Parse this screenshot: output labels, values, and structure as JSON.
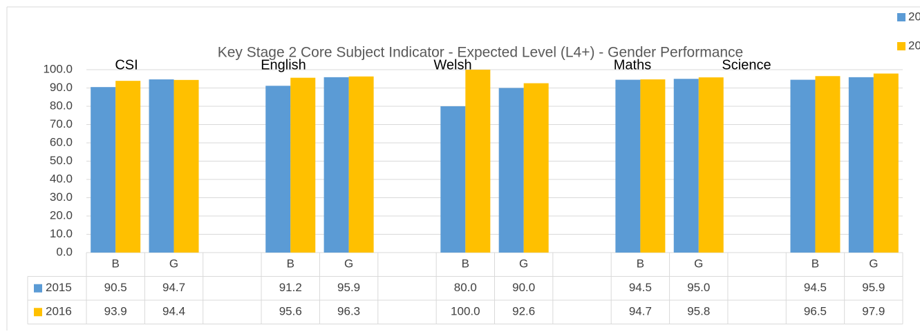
{
  "chart_data": {
    "type": "bar",
    "title": "Key Stage 2 Core Subject Indicator - Expected Level (L4+) - Gender Performance",
    "categories": [
      "B",
      "G",
      null,
      "B",
      "G",
      null,
      "B",
      "G",
      null,
      "B",
      "G",
      null,
      "B",
      "G"
    ],
    "group_labels": [
      "CSI",
      "English",
      "Welsh",
      "Maths",
      "Science"
    ],
    "series": [
      {
        "name": "2015",
        "color": "#5b9bd5",
        "values": [
          90.5,
          94.7,
          null,
          91.2,
          95.9,
          null,
          80.0,
          90.0,
          null,
          94.5,
          95.0,
          null,
          94.5,
          95.9
        ],
        "value_labels": [
          "90.5",
          "94.7",
          null,
          "91.2",
          "95.9",
          null,
          "80.0",
          "90.0",
          null,
          "94.5",
          "95.0",
          null,
          "94.5",
          "95.9"
        ]
      },
      {
        "name": "2016",
        "color": "#ffc000",
        "values": [
          93.9,
          94.4,
          null,
          95.6,
          96.3,
          null,
          100.0,
          92.6,
          null,
          94.7,
          95.8,
          null,
          96.5,
          97.9
        ],
        "value_labels": [
          "93.9",
          "94.4",
          null,
          "95.6",
          "96.3",
          null,
          "100.0",
          "92.6",
          null,
          "94.7",
          "95.8",
          null,
          "96.5",
          "97.9"
        ]
      }
    ],
    "ylim": [
      0,
      100
    ],
    "yticks": [
      {
        "value": 0,
        "label": "0.0"
      },
      {
        "value": 10,
        "label": "10.0"
      },
      {
        "value": 20,
        "label": "20.0"
      },
      {
        "value": 30,
        "label": "30.0"
      },
      {
        "value": 40,
        "label": "40.0"
      },
      {
        "value": 50,
        "label": "50.0"
      },
      {
        "value": 60,
        "label": "60.0"
      },
      {
        "value": 70,
        "label": "70.0"
      },
      {
        "value": 80,
        "label": "80.0"
      },
      {
        "value": 90,
        "label": "90.0"
      },
      {
        "value": 100,
        "label": "100.0"
      }
    ],
    "grid": true,
    "legend": "top-right",
    "data_table": true
  }
}
